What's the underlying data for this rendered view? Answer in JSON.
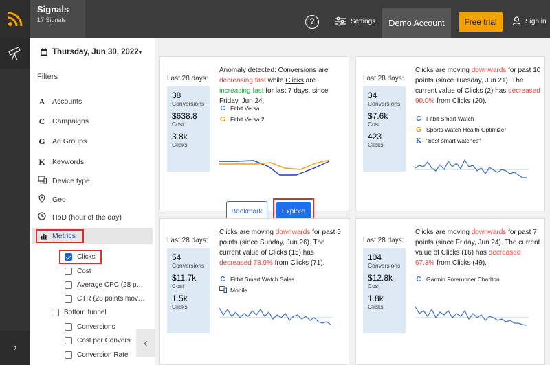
{
  "header": {
    "app_title": "Signals",
    "signal_count": "17 Signals",
    "help_label": "?",
    "settings_label": "Settings",
    "account_label": "Demo Account",
    "trial_label": "Free trial",
    "signin_label": "Sign in",
    "accent_color": "#f5a200"
  },
  "sidebar": {
    "date": "Thursday, Jun 30, 2022",
    "filters_title": "Filters",
    "items": [
      {
        "label": "Accounts",
        "icon": "A"
      },
      {
        "label": "Campaigns",
        "icon": "C"
      },
      {
        "label": "Ad Groups",
        "icon": "G"
      },
      {
        "label": "Keywords",
        "icon": "K"
      },
      {
        "label": "Device type",
        "icon": "device-icon"
      },
      {
        "label": "Geo",
        "icon": "pin-icon"
      },
      {
        "label": "HoD (hour of the day)",
        "icon": "clock-icon"
      }
    ],
    "metrics_label": "Metrics",
    "metrics": [
      {
        "label": "Clicks",
        "checked": true
      },
      {
        "label": "Cost",
        "checked": false
      },
      {
        "label": "Average CPC (28 p…",
        "checked": false
      },
      {
        "label": "CTR (28 points mov…",
        "checked": false
      }
    ],
    "bottom_funnel_label": "Bottom funnel",
    "bottom_funnel": [
      {
        "label": "Conversions",
        "checked": false
      },
      {
        "label": "Cost per Convers",
        "checked": false
      },
      {
        "label": "Conversion Rate",
        "checked": false
      }
    ]
  },
  "cards": [
    {
      "period": "Last 28 days:",
      "stats": [
        {
          "value": "38",
          "label": "Conversions"
        },
        {
          "value": "$638.8",
          "label": "Cost"
        },
        {
          "value": "3.8k",
          "label": "Clicks"
        }
      ],
      "desc": {
        "p1": "Anomaly detected: ",
        "metric1": "Conversions",
        "p2": " are ",
        "trend1": "decreasing fast",
        "p3": " while ",
        "metric2": "Clicks",
        "p4": " are ",
        "trend2": "increasing fast",
        "p5": " for last 7 days, since Friday, Jun 24."
      },
      "campaigns": [
        {
          "icon": "C",
          "name": "Fitbit Versa"
        },
        {
          "icon": "G",
          "name": "Fitbit Versa 2"
        }
      ],
      "bookmark_label": "Bookmark",
      "explore_label": "Explore"
    },
    {
      "period": "Last 28 days:",
      "stats": [
        {
          "value": "34",
          "label": "Conversions"
        },
        {
          "value": "$7.6k",
          "label": "Cost"
        },
        {
          "value": "423",
          "label": "Clicks"
        }
      ],
      "desc": {
        "metric": "Clicks",
        "p1": " are moving ",
        "trend": "downwards",
        "p2": " for past 10 points (since Tuesday, Jun 21). The current value of Clicks (2) has ",
        "change": "decreased 90.0%",
        "p3": " from Clicks (20)."
      },
      "campaigns": [
        {
          "icon": "C",
          "name": "Fitbit Smart Watch"
        },
        {
          "icon": "G",
          "name": "Sports Watch Health Optimizer"
        },
        {
          "icon": "K",
          "name": "\"best smart watches\""
        }
      ]
    },
    {
      "period": "Last 28 days:",
      "stats": [
        {
          "value": "54",
          "label": "Conversions"
        },
        {
          "value": "$11.7k",
          "label": "Cost"
        },
        {
          "value": "1.5k",
          "label": "Clicks"
        }
      ],
      "desc": {
        "metric": "Clicks",
        "p1": " are moving ",
        "trend": "downwards",
        "p2": " for past 5 points (since Sunday, Jun 26). The current value of Clicks (15) has ",
        "change": "decreased 78.9%",
        "p3": " from Clicks (71)."
      },
      "campaigns": [
        {
          "icon": "C",
          "name": "Fitbit Smart Watch Sales"
        },
        {
          "icon": "device-icon",
          "name": "Mobile"
        }
      ]
    },
    {
      "period": "Last 28 days:",
      "stats": [
        {
          "value": "104",
          "label": "Conversions"
        },
        {
          "value": "$12.8k",
          "label": "Cost"
        },
        {
          "value": "1.8k",
          "label": "Clicks"
        }
      ],
      "desc": {
        "metric": "Clicks",
        "p1": " are moving ",
        "trend": "downwards",
        "p2": " for past 7 points (since Friday, Jun 24). The current value of Clicks (16) has ",
        "change": "decreased 67.3%",
        "p3": " from Clicks (49)."
      },
      "campaigns": [
        {
          "icon": "C",
          "name": "Garmin Forerunner Charlton"
        }
      ]
    }
  ],
  "colors": {
    "decline": "#e0443a",
    "increase": "#2aa84a",
    "line_blue": "#2233cc",
    "line_orange": "#f39c12",
    "sparkline": "#3a6fc4"
  }
}
